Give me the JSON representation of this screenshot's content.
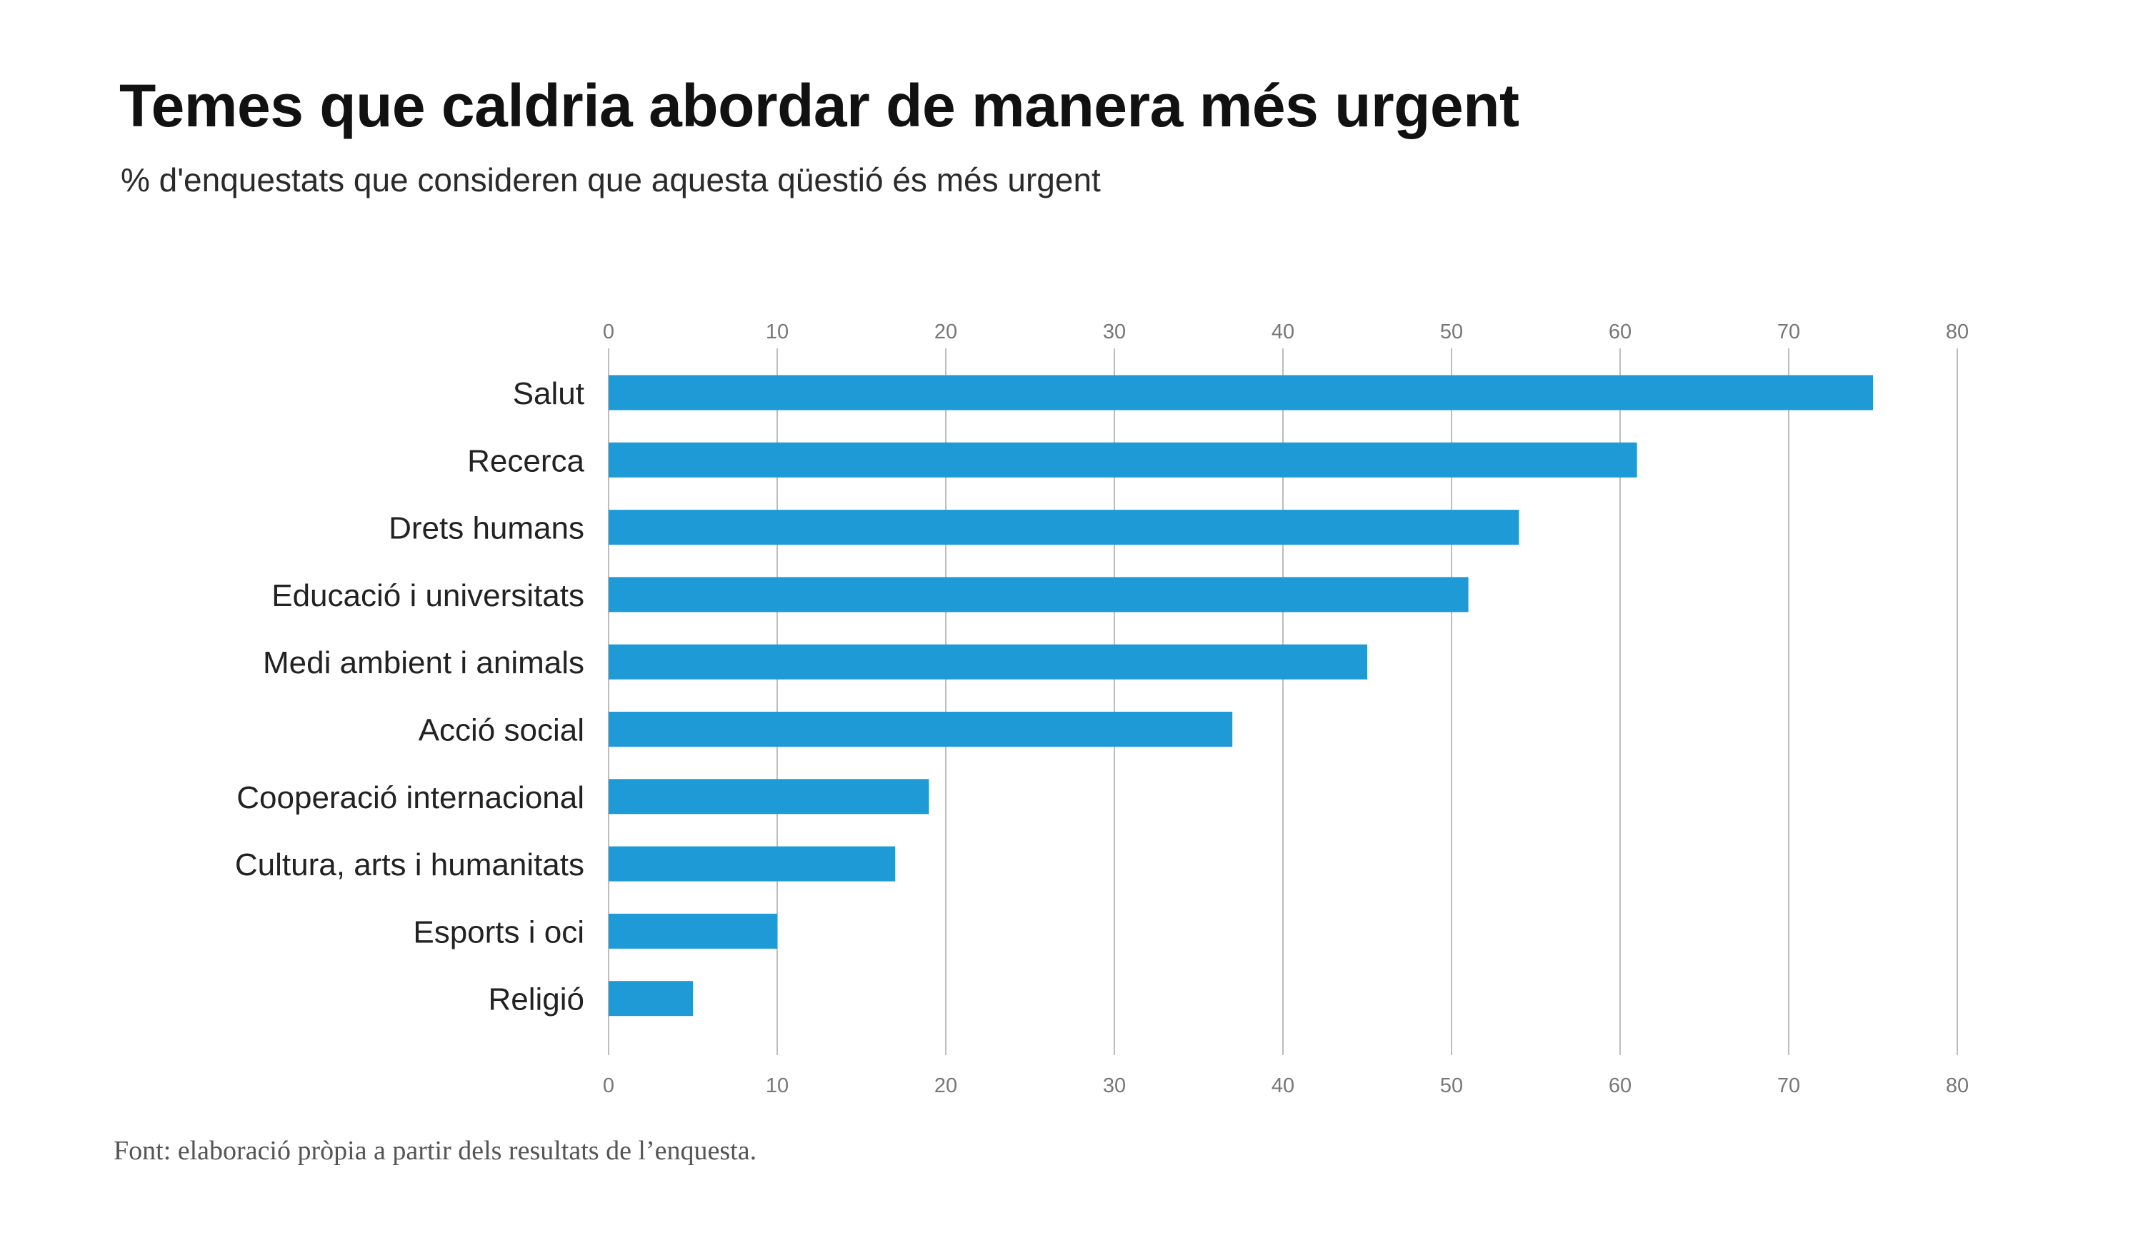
{
  "title": "Temes que caldria abordar de manera més urgent",
  "subtitle": "% d'enquestats que consideren que aquesta qüestió és més urgent",
  "source": "Font: elaboració pròpia a partir dels resultats de l’enquesta.",
  "colors": {
    "bar": "#1e9ad6",
    "grid": "#bdbdbd",
    "text": "#222222",
    "tick": "#777777"
  },
  "chart_data": {
    "type": "bar",
    "orientation": "horizontal",
    "title": "Temes que caldria abordar de manera més urgent",
    "subtitle": "% d'enquestats que consideren que aquesta qüestió és més urgent",
    "xlabel": "",
    "ylabel": "",
    "xlim": [
      0,
      80
    ],
    "ticks": [
      0,
      10,
      20,
      30,
      40,
      50,
      60,
      70,
      80
    ],
    "tick_labels_top": true,
    "tick_labels_bottom": true,
    "grid": true,
    "legend": "none",
    "categories": [
      "Salut",
      "Recerca",
      "Drets humans",
      "Educació i universitats",
      "Medi ambient i animals",
      "Acció social",
      "Cooperació internacional",
      "Cultura, arts i humanitats",
      "Esports i oci",
      "Religió"
    ],
    "values": [
      75,
      61,
      54,
      51,
      45,
      37,
      19,
      17,
      10,
      5
    ]
  }
}
